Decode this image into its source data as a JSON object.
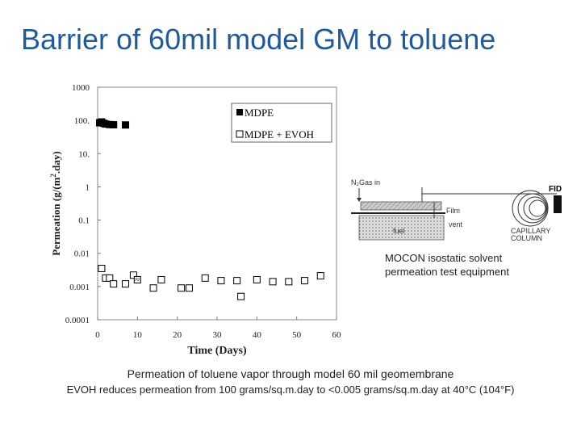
{
  "slide": {
    "title": "Barrier of 60mil model GM to toluene",
    "caption_main": "Permeation of toluene vapor through model 60 mil geomembrane",
    "caption_sub": "EVOH reduces permeation from 100 grams/sq.m.day to <0.005 grams/sq.m.day at 40°C (104°F)"
  },
  "equipment": {
    "caption_line1": "MOCON isostatic solvent",
    "caption_line2": "permeation test equipment",
    "gas_in_label": "N₂Gas in",
    "film_label": "Film",
    "vent_label": "vent",
    "fuel_label": "fuel",
    "detector_label": "FID",
    "column_label_line1": "CAPILLARY",
    "column_label_line2": "COLUMN"
  },
  "chart_data": {
    "type": "scatter",
    "xlabel": "Time (Days)",
    "ylabel_main": "Permeation (g/(m",
    "ylabel_sup": "2",
    "ylabel_end": ".day)",
    "xlim": [
      0,
      60
    ],
    "ylim": [
      0.0001,
      1000
    ],
    "yscale": "log",
    "x_ticks": [
      0,
      10,
      20,
      30,
      40,
      50,
      60
    ],
    "x_tick_labels": [
      "0",
      "10",
      "20",
      "30",
      "40",
      "50",
      "60"
    ],
    "y_ticks": [
      0.0001,
      0.001,
      0.01,
      0.1,
      1,
      10,
      100,
      1000
    ],
    "y_tick_labels": [
      "0.0001",
      "0.001",
      "0.01",
      "0.1",
      "1",
      "10.",
      "100.",
      "1000"
    ],
    "grid": false,
    "legend_position": "top-right",
    "series": [
      {
        "name": "MDPE",
        "marker": "filled-square",
        "color": "#000000",
        "x": [
          0.5,
          1,
          1.5,
          2,
          3,
          4,
          7
        ],
        "y": [
          85,
          90,
          82,
          78,
          75,
          74,
          73
        ]
      },
      {
        "name": "MDPE + EVOH",
        "marker": "open-square",
        "color": "#000000",
        "x": [
          1,
          2,
          3,
          4,
          7,
          9,
          10,
          14,
          16,
          21,
          23,
          27,
          31,
          35,
          36,
          40,
          44,
          48,
          52,
          56
        ],
        "y": [
          0.0035,
          0.0018,
          0.0018,
          0.0012,
          0.0012,
          0.0022,
          0.0016,
          0.0009,
          0.0016,
          0.0009,
          0.0009,
          0.0018,
          0.0015,
          0.0015,
          0.0005,
          0.0016,
          0.0014,
          0.0014,
          0.0015,
          0.0021
        ]
      }
    ],
    "annotations": [
      "≈"
    ]
  }
}
